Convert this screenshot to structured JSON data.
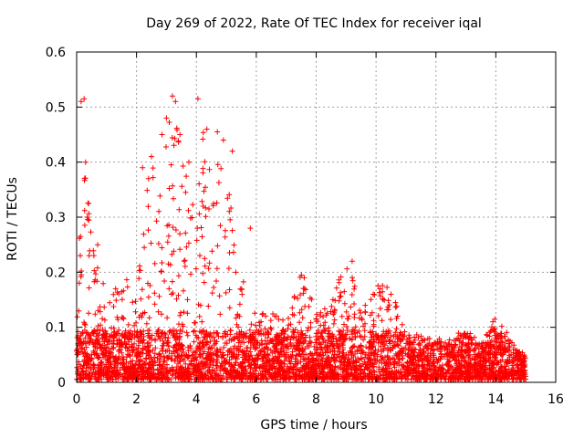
{
  "chart_data": {
    "type": "scatter",
    "title": "Day 269 of 2022, Rate Of TEC Index for receiver iqal",
    "xlabel": "GPS time / hours",
    "ylabel": "ROTI / TECUs",
    "xlim": [
      0,
      16
    ],
    "ylim": [
      0,
      0.6
    ],
    "xticks": [
      0,
      2,
      4,
      6,
      8,
      10,
      12,
      14,
      16
    ],
    "yticks": [
      0,
      0.1,
      0.2,
      0.3,
      0.4,
      0.5,
      0.6
    ],
    "grid": true,
    "marker": "+",
    "series_color": "#ff0000",
    "envelope": {
      "note": "approximate per-hour upper extent of the dense point cloud (ROTI)",
      "x": [
        0.0,
        0.25,
        0.5,
        0.75,
        1.0,
        1.25,
        1.5,
        1.75,
        2.0,
        2.25,
        2.5,
        2.75,
        3.0,
        3.25,
        3.5,
        3.75,
        4.0,
        4.25,
        4.5,
        4.75,
        5.0,
        5.25,
        5.5,
        5.75,
        6.0,
        6.5,
        7.0,
        7.5,
        8.0,
        8.5,
        9.0,
        9.5,
        10.0,
        10.5,
        11.0,
        11.5,
        12.0,
        12.5,
        13.0,
        13.5,
        14.0,
        14.5,
        15.0
      ],
      "y": [
        0.24,
        0.4,
        0.26,
        0.25,
        0.12,
        0.16,
        0.17,
        0.19,
        0.16,
        0.3,
        0.4,
        0.32,
        0.45,
        0.52,
        0.4,
        0.35,
        0.3,
        0.46,
        0.36,
        0.42,
        0.42,
        0.3,
        0.2,
        0.14,
        0.12,
        0.12,
        0.1,
        0.19,
        0.12,
        0.13,
        0.22,
        0.13,
        0.17,
        0.16,
        0.08,
        0.08,
        0.07,
        0.07,
        0.09,
        0.06,
        0.11,
        0.07,
        0.04
      ]
    },
    "outliers": [
      {
        "x": 0.15,
        "y": 0.51
      },
      {
        "x": 0.25,
        "y": 0.515
      },
      {
        "x": 0.3,
        "y": 0.4
      },
      {
        "x": 0.35,
        "y": 0.3
      },
      {
        "x": 0.4,
        "y": 0.325
      },
      {
        "x": 0.7,
        "y": 0.25
      },
      {
        "x": 1.3,
        "y": 0.17
      },
      {
        "x": 2.2,
        "y": 0.39
      },
      {
        "x": 2.4,
        "y": 0.37
      },
      {
        "x": 2.5,
        "y": 0.41
      },
      {
        "x": 2.85,
        "y": 0.45
      },
      {
        "x": 3.0,
        "y": 0.48
      },
      {
        "x": 3.2,
        "y": 0.52
      },
      {
        "x": 3.3,
        "y": 0.51
      },
      {
        "x": 3.45,
        "y": 0.45
      },
      {
        "x": 3.75,
        "y": 0.4
      },
      {
        "x": 4.05,
        "y": 0.515
      },
      {
        "x": 4.35,
        "y": 0.46
      },
      {
        "x": 4.7,
        "y": 0.455
      },
      {
        "x": 4.9,
        "y": 0.44
      },
      {
        "x": 5.2,
        "y": 0.42
      },
      {
        "x": 5.8,
        "y": 0.28
      },
      {
        "x": 7.6,
        "y": 0.19
      },
      {
        "x": 9.2,
        "y": 0.22
      },
      {
        "x": 10.5,
        "y": 0.16
      },
      {
        "x": 13.9,
        "y": 0.11
      }
    ]
  }
}
